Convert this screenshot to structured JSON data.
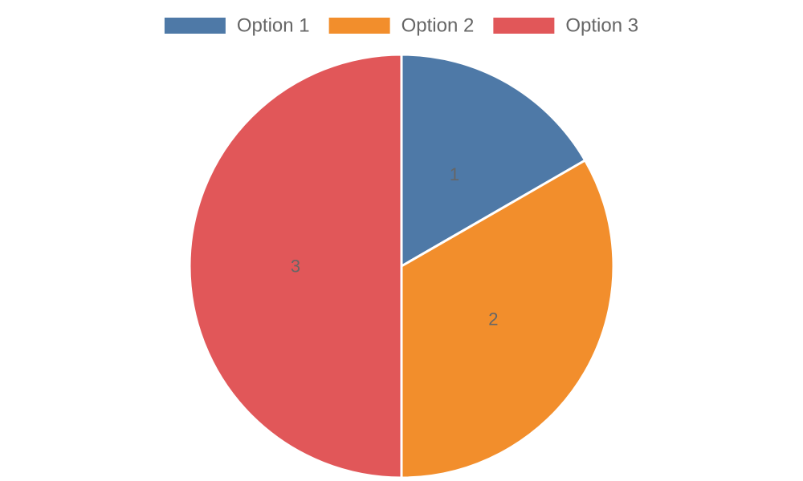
{
  "chart_data": {
    "type": "pie",
    "categories": [
      "Option 1",
      "Option 2",
      "Option 3"
    ],
    "values": [
      1,
      2,
      3
    ],
    "data_labels": [
      "1",
      "2",
      "3"
    ],
    "colors": [
      "#4e79a7",
      "#f28e2c",
      "#e15759"
    ],
    "legend": {
      "position": "top",
      "entries": [
        "Option 1",
        "Option 2",
        "Option 3"
      ]
    },
    "title": "",
    "start_angle_deg": 0,
    "direction": "clockwise"
  }
}
